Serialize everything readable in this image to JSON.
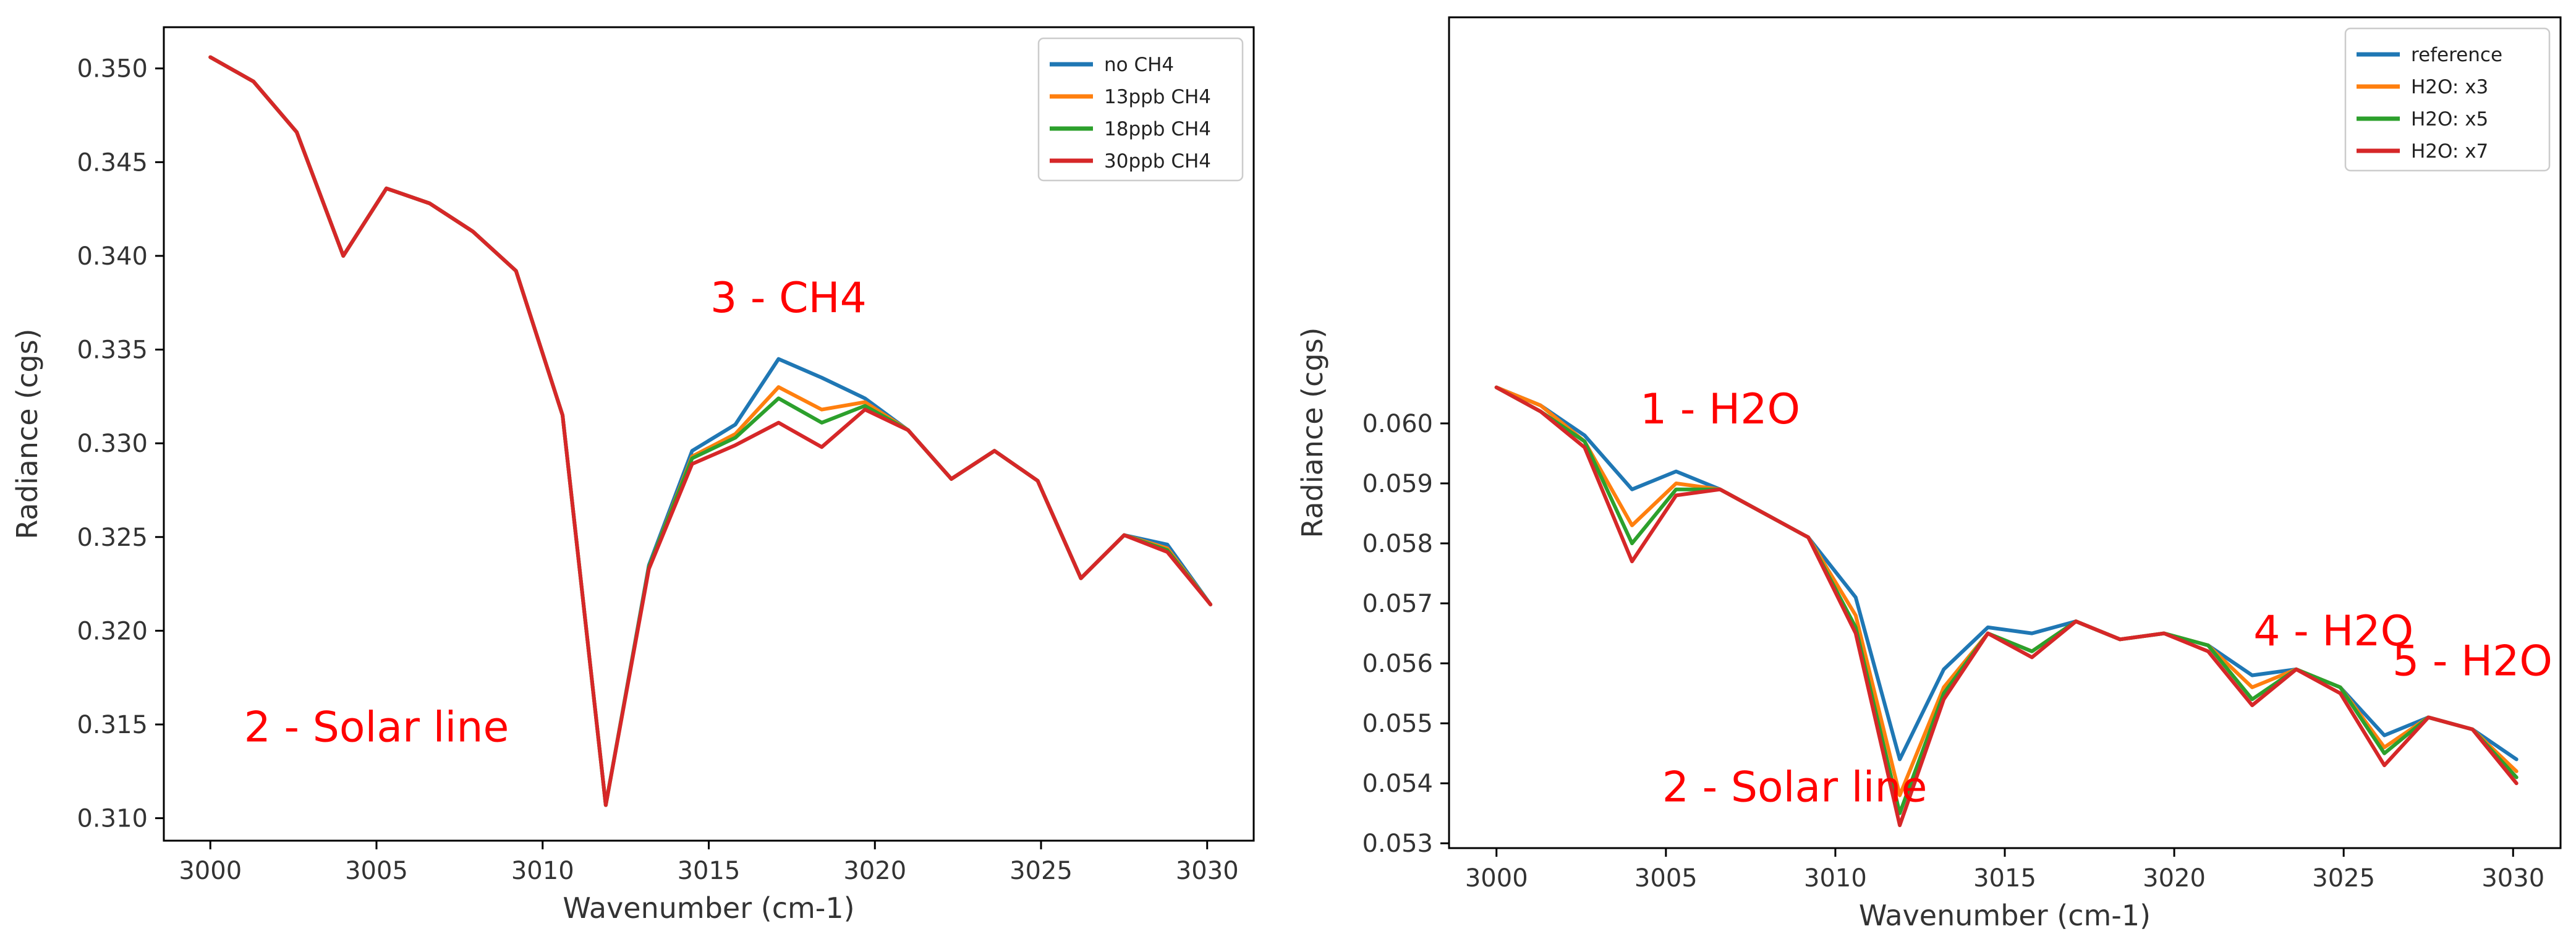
{
  "chart_data": [
    {
      "type": "line",
      "title": "",
      "xlabel": "Wavenumber (cm-1)",
      "ylabel": "Radiance (cgs)",
      "xlim": [
        2998.6,
        3031.4
      ],
      "ylim": [
        0.3088,
        0.3522
      ],
      "xticks": [
        3000,
        3005,
        3010,
        3015,
        3020,
        3025,
        3030
      ],
      "xtick_labels": [
        "3000",
        "3005",
        "3010",
        "3015",
        "3020",
        "3025",
        "3030"
      ],
      "yticks": [
        0.31,
        0.315,
        0.32,
        0.325,
        0.33,
        0.335,
        0.34,
        0.345,
        0.35
      ],
      "ytick_labels": [
        "0.310",
        "0.315",
        "0.320",
        "0.325",
        "0.330",
        "0.335",
        "0.340",
        "0.345",
        "0.350"
      ],
      "legend_position": "top-right",
      "grid": false,
      "x": [
        3000.0,
        3001.3,
        3002.6,
        3004.0,
        3005.3,
        3006.6,
        3007.9,
        3009.2,
        3010.6,
        3011.9,
        3013.2,
        3014.5,
        3015.8,
        3017.1,
        3018.4,
        3019.7,
        3021.0,
        3022.3,
        3023.6,
        3024.9,
        3026.2,
        3027.5,
        3028.8,
        3030.1
      ],
      "series": [
        {
          "name": "no CH4",
          "color": "#1f77b4",
          "values": [
            0.3506,
            0.3493,
            0.3466,
            0.34,
            0.3436,
            0.3428,
            0.3413,
            0.3392,
            0.3315,
            0.3107,
            0.3235,
            0.3296,
            0.331,
            0.3345,
            0.3335,
            0.3324,
            0.3307,
            0.3281,
            0.3296,
            0.328,
            0.3228,
            0.3251,
            0.3246,
            0.3214
          ]
        },
        {
          "name": "13ppb CH4",
          "color": "#ff7f0e",
          "values": [
            0.3506,
            0.3493,
            0.3466,
            0.34,
            0.3436,
            0.3428,
            0.3413,
            0.3392,
            0.3315,
            0.3107,
            0.3234,
            0.3293,
            0.3305,
            0.333,
            0.3318,
            0.3322,
            0.3307,
            0.3281,
            0.3296,
            0.328,
            0.3228,
            0.3251,
            0.3244,
            0.3214
          ]
        },
        {
          "name": "18ppb CH4",
          "color": "#2ca02c",
          "values": [
            0.3506,
            0.3493,
            0.3466,
            0.34,
            0.3436,
            0.3428,
            0.3413,
            0.3392,
            0.3315,
            0.3107,
            0.3234,
            0.3292,
            0.3303,
            0.3324,
            0.3311,
            0.332,
            0.3307,
            0.3281,
            0.3296,
            0.328,
            0.3228,
            0.3251,
            0.3243,
            0.3214
          ]
        },
        {
          "name": "30ppb CH4",
          "color": "#d62728",
          "values": [
            0.3506,
            0.3493,
            0.3466,
            0.34,
            0.3436,
            0.3428,
            0.3413,
            0.3392,
            0.3315,
            0.3107,
            0.3233,
            0.3289,
            0.3299,
            0.3311,
            0.3298,
            0.3318,
            0.3307,
            0.3281,
            0.3296,
            0.328,
            0.3228,
            0.3251,
            0.3242,
            0.3214
          ]
        }
      ],
      "annotations": [
        {
          "text": "3 - CH4",
          "x": 3017.4,
          "y": 0.337,
          "color": "#ff0000"
        },
        {
          "text": "2 - Solar line",
          "x": 3005.0,
          "y": 0.3141,
          "color": "#ff0000"
        }
      ]
    },
    {
      "type": "line",
      "title": "",
      "xlabel": "Wavenumber (cm-1)",
      "ylabel": "Radiance (cgs)",
      "xlim": [
        2998.6,
        3031.4
      ],
      "ylim": [
        0.05292,
        0.06677
      ],
      "xticks": [
        3000,
        3005,
        3010,
        3015,
        3020,
        3025,
        3030
      ],
      "xtick_labels": [
        "3000",
        "3005",
        "3010",
        "3015",
        "3020",
        "3025",
        "3030"
      ],
      "yticks": [
        0.053,
        0.054,
        0.055,
        0.056,
        0.057,
        0.058,
        0.059,
        0.06
      ],
      "ytick_labels": [
        "0.053",
        "0.054",
        "0.055",
        "0.056",
        "0.057",
        "0.058",
        "0.059",
        "0.060"
      ],
      "legend_position": "top-right",
      "grid": false,
      "x": [
        3000.0,
        3001.3,
        3002.6,
        3004.0,
        3005.3,
        3006.6,
        3007.9,
        3009.2,
        3010.6,
        3011.9,
        3013.2,
        3014.5,
        3015.8,
        3017.1,
        3018.4,
        3019.7,
        3021.0,
        3022.3,
        3023.6,
        3024.9,
        3026.2,
        3027.5,
        3028.8,
        3030.1
      ],
      "series": [
        {
          "name": "reference",
          "color": "#1f77b4",
          "values": [
            0.0606,
            0.0603,
            0.0598,
            0.0589,
            0.0592,
            0.0589,
            0.0585,
            0.0581,
            0.0571,
            0.0544,
            0.0559,
            0.0566,
            0.0565,
            0.0567,
            0.0564,
            0.0565,
            0.0563,
            0.0558,
            0.0559,
            0.0556,
            0.0548,
            0.0551,
            0.0549,
            0.0544
          ]
        },
        {
          "name": "H2O: x3",
          "color": "#ff7f0e",
          "values": [
            0.0606,
            0.0603,
            0.0597,
            0.0583,
            0.059,
            0.0589,
            0.0585,
            0.0581,
            0.0568,
            0.0538,
            0.0556,
            0.0565,
            0.0562,
            0.0567,
            0.0564,
            0.0565,
            0.0563,
            0.0556,
            0.0559,
            0.0556,
            0.0546,
            0.0551,
            0.0549,
            0.0542
          ]
        },
        {
          "name": "H2O: x5",
          "color": "#2ca02c",
          "values": [
            0.0606,
            0.0602,
            0.0597,
            0.058,
            0.0589,
            0.0589,
            0.0585,
            0.0581,
            0.0566,
            0.0535,
            0.0555,
            0.0565,
            0.0562,
            0.0567,
            0.0564,
            0.0565,
            0.0563,
            0.0554,
            0.0559,
            0.0556,
            0.0545,
            0.0551,
            0.0549,
            0.0541
          ]
        },
        {
          "name": "H2O: x7",
          "color": "#d62728",
          "values": [
            0.0606,
            0.0602,
            0.0596,
            0.0577,
            0.0588,
            0.0589,
            0.0585,
            0.0581,
            0.0565,
            0.0533,
            0.0554,
            0.0565,
            0.0561,
            0.0567,
            0.0564,
            0.0565,
            0.0562,
            0.0553,
            0.0559,
            0.0555,
            0.0543,
            0.0551,
            0.0549,
            0.054
          ]
        }
      ],
      "annotations": [
        {
          "text": "1 - H2O",
          "x": 3006.6,
          "y": 0.06,
          "color": "#ff0000"
        },
        {
          "text": "4 - H2O",
          "x": 3024.7,
          "y": 0.0563,
          "color": "#ff0000"
        },
        {
          "text": "5 - H2O",
          "x": 3028.8,
          "y": 0.0558,
          "color": "#ff0000"
        },
        {
          "text": "2 - Solar line",
          "x": 3008.8,
          "y": 0.0537,
          "color": "#ff0000"
        }
      ]
    }
  ]
}
